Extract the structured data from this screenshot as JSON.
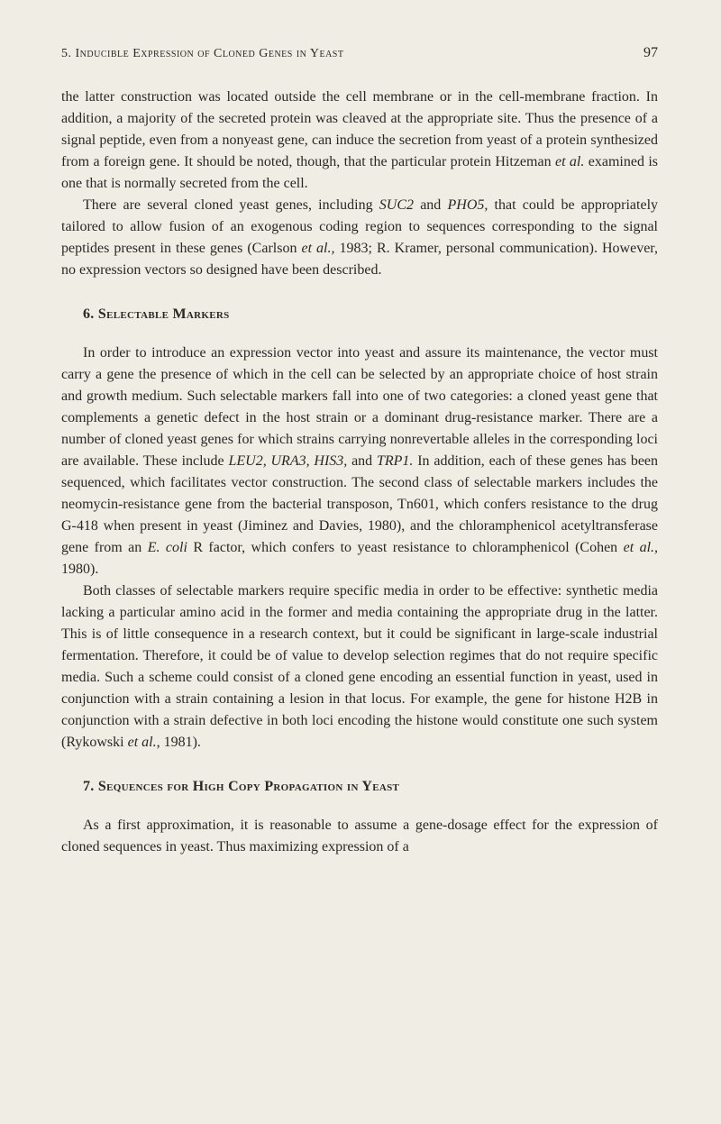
{
  "header": {
    "running_title": "5. Inducible Expression of Cloned Genes in Yeast",
    "page_number": "97"
  },
  "body": {
    "intro_p1": "the latter construction was located outside the cell membrane or in the cell-membrane fraction. In addition, a majority of the secreted protein was cleaved at the appropriate site. Thus the presence of a signal peptide, even from a nonyeast gene, can induce the secretion from yeast of a protein synthesized from a foreign gene. It should be noted, though, that the particular protein Hitzeman ",
    "intro_p1_italic1": "et al.",
    "intro_p1_cont": " examined is one that is normally secreted from the cell.",
    "intro_p2_a": "There are several cloned yeast genes, including ",
    "intro_p2_i1": "SUC2",
    "intro_p2_b": " and ",
    "intro_p2_i2": "PHO5,",
    "intro_p2_c": " that could be appropriately tailored to allow fusion of an exogenous coding region to sequences corresponding to the signal peptides present in these genes (Carlson ",
    "intro_p2_i3": "et al.,",
    "intro_p2_d": " 1983; R. Kramer, personal communication). However, no expression vectors so designed have been described."
  },
  "section6": {
    "heading": "6. Selectable Markers",
    "p1_a": "In order to introduce an expression vector into yeast and assure its maintenance, the vector must carry a gene the presence of which in the cell can be selected by an appropriate choice of host strain and growth medium. Such selectable markers fall into one of two categories: a cloned yeast gene that complements a genetic defect in the host strain or a dominant drug-resistance marker. There are a number of cloned yeast genes for which strains carrying nonrevertable alleles in the corresponding loci are available. These include ",
    "p1_i1": "LEU2, URA3, HIS3,",
    "p1_b": " and ",
    "p1_i2": "TRP1.",
    "p1_c": " In addition, each of these genes has been sequenced, which facilitates vector construction. The second class of selectable markers includes the neomycin-resistance gene from the bacterial transposon, Tn601, which confers resistance to the drug G-418 when present in yeast (Jiminez and Davies, 1980), and the chloramphenicol acetyltransferase gene from an ",
    "p1_i3": "E. coli",
    "p1_d": " R factor, which confers to yeast resistance to chloramphenicol (Cohen ",
    "p1_i4": "et al.,",
    "p1_e": " 1980).",
    "p2_a": "Both classes of selectable markers require specific media in order to be effective: synthetic media lacking a particular amino acid in the former and media containing the appropriate drug in the latter. This is of little consequence in a research context, but it could be significant in large-scale industrial fermentation. Therefore, it could be of value to develop selection regimes that do not require specific media. Such a scheme could consist of a cloned gene encoding an essential function in yeast, used in conjunction with a strain containing a lesion in that locus. For example, the gene for histone H2B in conjunction with a strain defective in both loci encoding the histone would constitute one such system (Rykowski ",
    "p2_i1": "et al.,",
    "p2_b": " 1981)."
  },
  "section7": {
    "heading": "7. Sequences for High Copy Propagation in Yeast",
    "p1": "As a first approximation, it is reasonable to assume a gene-dosage effect for the expression of cloned sequences in yeast. Thus maximizing expression of a"
  }
}
